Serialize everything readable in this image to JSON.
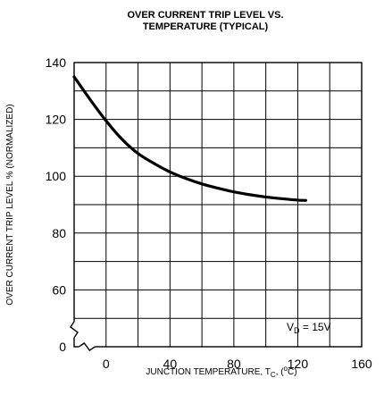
{
  "chart_data": {
    "type": "line",
    "title": "OVER CURRENT TRIP LEVEL VS.",
    "subtitle": "TEMPERATURE (TYPICAL)",
    "xlabel": "JUNCTION TEMPERATURE, T",
    "xlabel_sub": "C",
    "xlabel_suffix_open": ", (",
    "xlabel_sup": "o",
    "xlabel_suffix_close": "C)",
    "ylabel": "OVER CURRENT TRIP LEVEL % (NORMALIZED)",
    "x_ticks": [
      "0",
      "40",
      "80",
      "120",
      "160"
    ],
    "y_ticks": [
      "140",
      "120",
      "100",
      "80",
      "60",
      "0"
    ],
    "xlim": [
      -20,
      160
    ],
    "ylim": [
      40,
      140
    ],
    "axis_break": "y-axis break between 0 and 60; x-axis break between -20 and 0",
    "grid": true,
    "annotation": {
      "prefix": "V",
      "sub": "D",
      "suffix": " = 15V"
    },
    "series": [
      {
        "x": [
          -20,
          -10,
          0,
          10,
          20,
          30,
          40,
          50,
          60,
          70,
          80,
          90,
          100,
          110,
          120,
          125
        ],
        "values": [
          135,
          127,
          119.5,
          113,
          108,
          104.5,
          101.5,
          99.2,
          97.3,
          95.8,
          94.5,
          93.5,
          92.7,
          92.1,
          91.6,
          91.5
        ]
      }
    ],
    "colors": {
      "line": "#000000",
      "grid": "#000000",
      "background": "#ffffff"
    }
  }
}
